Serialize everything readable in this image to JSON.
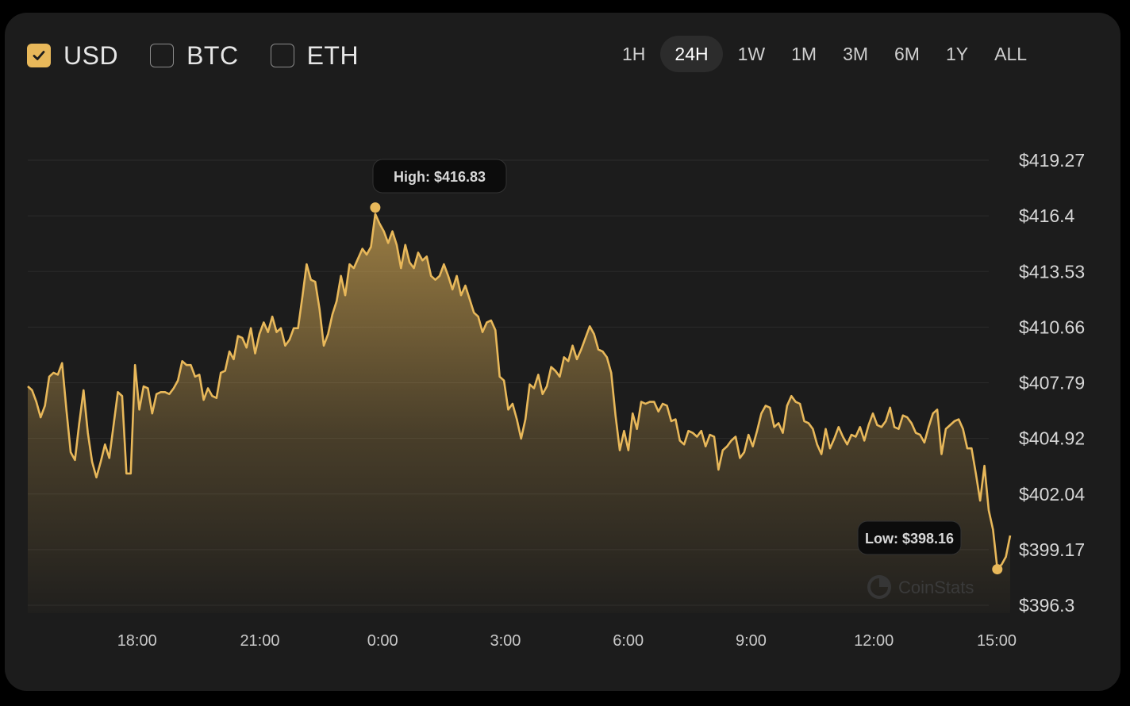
{
  "currencies": [
    {
      "label": "USD",
      "checked": true
    },
    {
      "label": "BTC",
      "checked": false
    },
    {
      "label": "ETH",
      "checked": false
    }
  ],
  "ranges": [
    {
      "label": "1H",
      "active": false
    },
    {
      "label": "24H",
      "active": true
    },
    {
      "label": "1W",
      "active": false
    },
    {
      "label": "1M",
      "active": false
    },
    {
      "label": "3M",
      "active": false
    },
    {
      "label": "6M",
      "active": false
    },
    {
      "label": "1Y",
      "active": false
    },
    {
      "label": "ALL",
      "active": false
    }
  ],
  "watermark": "CoinStats",
  "colors": {
    "line": "#e8b85a",
    "accent": "#e8b85a",
    "card": "#1c1c1c",
    "grid": "#2b2b2b"
  },
  "chart_data": {
    "type": "area",
    "title": "",
    "xlabel": "",
    "ylabel": "",
    "currency": "USD",
    "range": "24H",
    "y_ticks": [
      "$419.27",
      "$416.4",
      "$413.53",
      "$410.66",
      "$407.79",
      "$404.92",
      "$402.04",
      "$399.17",
      "$396.3"
    ],
    "ylim": [
      396.3,
      419.27
    ],
    "x_ticks": [
      {
        "label": "18:00",
        "hours": 18
      },
      {
        "label": "21:00",
        "hours": 21
      },
      {
        "label": "0:00",
        "hours": 24
      },
      {
        "label": "3:00",
        "hours": 27
      },
      {
        "label": "6:00",
        "hours": 30
      },
      {
        "label": "9:00",
        "hours": 33
      },
      {
        "label": "12:00",
        "hours": 36
      },
      {
        "label": "15:00",
        "hours": 39
      }
    ],
    "xlim": [
      15.33,
      39.33
    ],
    "grid": true,
    "high": {
      "label": "High: $416.83",
      "value": 416.83,
      "time": "23:25"
    },
    "low": {
      "label": "Low: $398.16",
      "value": 398.16,
      "time": "15:10"
    },
    "series": [
      {
        "values": [
          407.6,
          407.4,
          406.8,
          406.0,
          406.6,
          408.1,
          408.3,
          408.2,
          408.8,
          406.4,
          404.2,
          403.8,
          405.7,
          407.4,
          405.2,
          403.7,
          402.9,
          403.7,
          404.6,
          403.9,
          405.6,
          407.3,
          407.1,
          403.1,
          403.1,
          408.7,
          406.4,
          407.6,
          407.5,
          406.2,
          407.2,
          407.3,
          407.3,
          407.2,
          407.5,
          407.9,
          408.9,
          408.7,
          408.7,
          408.1,
          408.2,
          406.9,
          407.5,
          407.1,
          407.0,
          408.3,
          408.4,
          409.4,
          409.0,
          410.2,
          410.1,
          409.6,
          410.6,
          409.3,
          410.3,
          410.9,
          410.4,
          411.2,
          410.4,
          410.6,
          409.7,
          410.0,
          410.6,
          410.6,
          412.2,
          413.9,
          413.1,
          413.0,
          411.6,
          409.7,
          410.3,
          411.3,
          412.0,
          413.3,
          412.3,
          413.9,
          413.7,
          414.2,
          414.7,
          414.4,
          414.8,
          416.5,
          416.0,
          415.6,
          415.0,
          415.6,
          414.9,
          413.7,
          414.9,
          414.0,
          413.7,
          414.5,
          414.1,
          414.3,
          413.3,
          413.1,
          413.3,
          413.9,
          413.3,
          412.6,
          413.3,
          412.3,
          412.8,
          412.1,
          411.4,
          411.2,
          410.4,
          410.9,
          411.0,
          410.5,
          408.1,
          407.9,
          406.4,
          406.7,
          405.9,
          404.9,
          405.9,
          407.7,
          407.5,
          408.2,
          407.2,
          407.6,
          408.6,
          408.4,
          408.1,
          409.1,
          408.9,
          409.7,
          409.0,
          409.5,
          410.1,
          410.7,
          410.3,
          409.5,
          409.4,
          409.1,
          408.3,
          406.1,
          404.3,
          405.3,
          404.3,
          406.2,
          405.4,
          406.8,
          406.7,
          406.8,
          406.8,
          406.3,
          406.7,
          406.6,
          405.8,
          405.9,
          404.8,
          404.6,
          405.3,
          405.2,
          405.0,
          405.3,
          404.5,
          405.1,
          405.0,
          403.3,
          404.3,
          404.5,
          404.8,
          405.0,
          403.9,
          404.2,
          405.1,
          404.5,
          405.3,
          406.2,
          406.6,
          406.5,
          405.5,
          405.7,
          405.2,
          406.6,
          407.1,
          406.8,
          406.7,
          405.8,
          405.7,
          405.4,
          404.6,
          404.1,
          405.4,
          404.4,
          404.9,
          405.5,
          405.0,
          404.6,
          405.1,
          405.0,
          405.5,
          404.8,
          405.6,
          406.2,
          405.6,
          405.5,
          405.8,
          406.5,
          405.5,
          405.4,
          406.1,
          406.0,
          405.7,
          405.2,
          405.1,
          404.7,
          405.5,
          406.2,
          406.4,
          404.1,
          405.4,
          405.6,
          405.8,
          405.9,
          405.4,
          404.4,
          404.4,
          403.1,
          401.7,
          403.5,
          401.2,
          400.2,
          398.2,
          398.4,
          398.8,
          399.9
        ]
      }
    ]
  }
}
